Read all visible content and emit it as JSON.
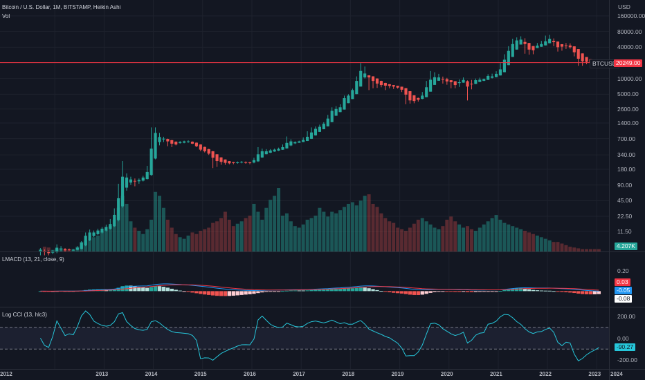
{
  "header": {
    "symbol_title": "Bitcoin / U.S. Dollar, 1M, BITSTAMP, Heikin Ashi",
    "vol_label": "Vol"
  },
  "panes": {
    "lmacd_label": "LMACD (13, 21, close, 9)",
    "cci_label": "Log CCI (13, hlc3)"
  },
  "price_axis": {
    "currency": "USD",
    "ticks": [
      "160000.00",
      "80000.00",
      "40000.00",
      "10000.00",
      "5000.00",
      "2600.00",
      "1400.00",
      "700.00",
      "340.00",
      "180.00",
      "90.00",
      "45.00",
      "22.50",
      "11.50"
    ],
    "tick_values": [
      160000,
      80000,
      40000,
      10000,
      5000,
      2600,
      1400,
      700,
      340,
      180,
      90,
      45,
      22.5,
      11.5
    ]
  },
  "badges": {
    "symbol": "BTCUSD",
    "last_price": "20249.00",
    "volume": "4.207K",
    "macd_hist": "0.03",
    "macd_line": "-0.05",
    "signal_line": "-0.08",
    "cci_value": "-90.27"
  },
  "macd_axis": {
    "ticks": [
      "0.20",
      "0.00"
    ]
  },
  "cci_axis": {
    "ticks": [
      "200.00",
      "0.00",
      "-200.00"
    ]
  },
  "time_axis": {
    "years": [
      "2012",
      "2013",
      "2014",
      "2015",
      "2016",
      "2017",
      "2018",
      "2019",
      "2020",
      "2021",
      "2022",
      "2023",
      "2024"
    ]
  },
  "colors": {
    "background": "#131722",
    "up": "#26a69a",
    "down": "#ef5350",
    "macd_line": "#2196f3",
    "signal_line": "#f23645",
    "cci_line": "#26c6da",
    "price_line": "#f23645",
    "text": "#d1d4dc"
  },
  "chart_data": [
    {
      "type": "candlestick",
      "title": "Bitcoin / U.S. Dollar, 1M, BITSTAMP, Heikin Ashi",
      "y_scale": "log",
      "ylim": [
        5,
        220000
      ],
      "x_start": "2011-09",
      "interval": "1M",
      "last_price": 20249,
      "candles": [
        {
          "o": 5.0,
          "c": 5.0,
          "h": 5.5,
          "l": 4.0
        },
        {
          "o": 4.8,
          "c": 4.6,
          "h": 5.2,
          "l": 4.0
        },
        {
          "o": 4.7,
          "c": 4.4,
          "h": 5.0,
          "l": 4.0
        },
        {
          "o": 4.5,
          "c": 4.8,
          "h": 5.0,
          "l": 4.2
        },
        {
          "o": 4.7,
          "c": 5.6,
          "h": 6.5,
          "l": 4.4
        },
        {
          "o": 5.2,
          "c": 5.4,
          "h": 6.0,
          "l": 4.8
        },
        {
          "o": 5.3,
          "c": 5.0,
          "h": 5.5,
          "l": 4.6
        },
        {
          "o": 5.2,
          "c": 5.1,
          "h": 5.4,
          "l": 4.9
        },
        {
          "o": 5.1,
          "c": 5.1,
          "h": 5.3,
          "l": 4.9
        },
        {
          "o": 5.1,
          "c": 5.6,
          "h": 6.0,
          "l": 5.0
        },
        {
          "o": 5.3,
          "c": 7.0,
          "h": 7.5,
          "l": 5.2
        },
        {
          "o": 6.2,
          "c": 9.5,
          "h": 11.0,
          "l": 6.0
        },
        {
          "o": 7.8,
          "c": 11.0,
          "h": 12.5,
          "l": 7.5
        },
        {
          "o": 9.4,
          "c": 11.0,
          "h": 12.0,
          "l": 9.0
        },
        {
          "o": 10.2,
          "c": 12.0,
          "h": 13.0,
          "l": 9.8
        },
        {
          "o": 11.0,
          "c": 13.0,
          "h": 14.0,
          "l": 10.5
        },
        {
          "o": 12.0,
          "c": 14.0,
          "h": 15.5,
          "l": 11.5
        },
        {
          "o": 13.0,
          "c": 16.0,
          "h": 20.0,
          "l": 12.5
        },
        {
          "o": 14.5,
          "c": 24.0,
          "h": 32.0,
          "l": 14.0
        },
        {
          "o": 19.0,
          "c": 50.0,
          "h": 95.0,
          "l": 18.0
        },
        {
          "o": 35.0,
          "c": 130.0,
          "h": 260.0,
          "l": 33.0
        },
        {
          "o": 80.0,
          "c": 125.0,
          "h": 150.0,
          "l": 70.0
        },
        {
          "o": 100.0,
          "c": 115.0,
          "h": 130.0,
          "l": 90.0
        },
        {
          "o": 108.0,
          "c": 105.0,
          "h": 120.0,
          "l": 85.0
        },
        {
          "o": 106.0,
          "c": 112.0,
          "h": 120.0,
          "l": 95.0
        },
        {
          "o": 109.0,
          "c": 125.0,
          "h": 135.0,
          "l": 105.0
        },
        {
          "o": 117.0,
          "c": 160.0,
          "h": 210.0,
          "l": 115.0
        },
        {
          "o": 140.0,
          "c": 450.0,
          "h": 1150.0,
          "l": 135.0
        },
        {
          "o": 290.0,
          "c": 900.0,
          "h": 1150.0,
          "l": 280.0
        },
        {
          "o": 600.0,
          "c": 750.0,
          "h": 900.0,
          "l": 520.0
        },
        {
          "o": 675.0,
          "c": 700.0,
          "h": 760.0,
          "l": 600.0
        },
        {
          "o": 690.0,
          "c": 620.0,
          "h": 700.0,
          "l": 500.0
        },
        {
          "o": 655.0,
          "c": 560.0,
          "h": 660.0,
          "l": 480.0
        },
        {
          "o": 610.0,
          "c": 540.0,
          "h": 620.0,
          "l": 520.0
        },
        {
          "o": 575.0,
          "c": 600.0,
          "h": 630.0,
          "l": 560.0
        },
        {
          "o": 585.0,
          "c": 620.0,
          "h": 640.0,
          "l": 570.0
        },
        {
          "o": 600.0,
          "c": 620.0,
          "h": 650.0,
          "l": 580.0
        },
        {
          "o": 610.0,
          "c": 560.0,
          "h": 620.0,
          "l": 550.0
        },
        {
          "o": 585.0,
          "c": 500.0,
          "h": 590.0,
          "l": 480.0
        },
        {
          "o": 540.0,
          "c": 430.0,
          "h": 545.0,
          "l": 400.0
        },
        {
          "o": 485.0,
          "c": 400.0,
          "h": 490.0,
          "l": 380.0
        },
        {
          "o": 440.0,
          "c": 360.0,
          "h": 445.0,
          "l": 340.0
        },
        {
          "o": 400.0,
          "c": 300.0,
          "h": 405.0,
          "l": 190.0
        },
        {
          "o": 350.0,
          "c": 260.0,
          "h": 352.0,
          "l": 200.0
        },
        {
          "o": 305.0,
          "c": 250.0,
          "h": 307.0,
          "l": 220.0
        },
        {
          "o": 278.0,
          "c": 240.0,
          "h": 279.0,
          "l": 220.0
        },
        {
          "o": 259.0,
          "c": 235.0,
          "h": 260.0,
          "l": 225.0
        },
        {
          "o": 247.0,
          "c": 238.0,
          "h": 250.0,
          "l": 225.0
        },
        {
          "o": 243.0,
          "c": 245.0,
          "h": 255.0,
          "l": 230.0
        },
        {
          "o": 244.0,
          "c": 250.0,
          "h": 260.0,
          "l": 235.0
        },
        {
          "o": 247.0,
          "c": 245.0,
          "h": 255.0,
          "l": 230.0
        },
        {
          "o": 246.0,
          "c": 240.0,
          "h": 250.0,
          "l": 225.0
        },
        {
          "o": 243.0,
          "c": 270.0,
          "h": 300.0,
          "l": 235.0
        },
        {
          "o": 256.0,
          "c": 350.0,
          "h": 480.0,
          "l": 250.0
        },
        {
          "o": 303.0,
          "c": 400.0,
          "h": 450.0,
          "l": 300.0
        },
        {
          "o": 351.0,
          "c": 400.0,
          "h": 440.0,
          "l": 350.0
        },
        {
          "o": 375.0,
          "c": 415.0,
          "h": 440.0,
          "l": 370.0
        },
        {
          "o": 395.0,
          "c": 430.0,
          "h": 450.0,
          "l": 390.0
        },
        {
          "o": 412.0,
          "c": 445.0,
          "h": 470.0,
          "l": 405.0
        },
        {
          "o": 428.0,
          "c": 480.0,
          "h": 540.0,
          "l": 425.0
        },
        {
          "o": 454.0,
          "c": 580.0,
          "h": 770.0,
          "l": 450.0
        },
        {
          "o": 517.0,
          "c": 620.0,
          "h": 680.0,
          "l": 500.0
        },
        {
          "o": 568.0,
          "c": 600.0,
          "h": 620.0,
          "l": 550.0
        },
        {
          "o": 584.0,
          "c": 620.0,
          "h": 640.0,
          "l": 580.0
        },
        {
          "o": 602.0,
          "c": 660.0,
          "h": 740.0,
          "l": 600.0
        },
        {
          "o": 631.0,
          "c": 760.0,
          "h": 970.0,
          "l": 630.0
        },
        {
          "o": 695.0,
          "c": 920.0,
          "h": 1150.0,
          "l": 690.0
        },
        {
          "o": 807.0,
          "c": 1080.0,
          "h": 1200.0,
          "l": 800.0
        },
        {
          "o": 943.0,
          "c": 1180.0,
          "h": 1300.0,
          "l": 940.0
        },
        {
          "o": 1061.0,
          "c": 1350.0,
          "h": 1450.0,
          "l": 1060.0
        },
        {
          "o": 1205.0,
          "c": 1700.0,
          "h": 2000.0,
          "l": 1200.0
        },
        {
          "o": 1452.0,
          "c": 2400.0,
          "h": 2800.0,
          "l": 1450.0
        },
        {
          "o": 1926.0,
          "c": 2600.0,
          "h": 2950.0,
          "l": 1920.0
        },
        {
          "o": 2263.0,
          "c": 2800.0,
          "h": 3200.0,
          "l": 2260.0
        },
        {
          "o": 2531.0,
          "c": 4200.0,
          "h": 4700.0,
          "l": 2530.0
        },
        {
          "o": 3365.0,
          "c": 4700.0,
          "h": 5000.0,
          "l": 3360.0
        },
        {
          "o": 4032.0,
          "c": 6000.0,
          "h": 6400.0,
          "l": 4030.0
        },
        {
          "o": 5016.0,
          "c": 9000.0,
          "h": 11000.0,
          "l": 5010.0
        },
        {
          "o": 7008.0,
          "c": 14000.0,
          "h": 19800.0,
          "l": 7000.0
        },
        {
          "o": 10504.0,
          "c": 12500.0,
          "h": 17000.0,
          "l": 10000.0
        },
        {
          "o": 11502.0,
          "c": 10500.0,
          "h": 11600.0,
          "l": 6000.0
        },
        {
          "o": 11001.0,
          "c": 9000.0,
          "h": 11100.0,
          "l": 6500.0
        },
        {
          "o": 10001.0,
          "c": 8000.0,
          "h": 10100.0,
          "l": 6600.0
        },
        {
          "o": 9001.0,
          "c": 7500.0,
          "h": 9100.0,
          "l": 6800.0
        },
        {
          "o": 8251.0,
          "c": 7300.0,
          "h": 8300.0,
          "l": 6000.0
        },
        {
          "o": 7776.0,
          "c": 7200.0,
          "h": 7800.0,
          "l": 6500.0
        },
        {
          "o": 7488.0,
          "c": 7000.0,
          "h": 7500.0,
          "l": 6300.0
        },
        {
          "o": 7244.0,
          "c": 6700.0,
          "h": 7250.0,
          "l": 6400.0
        },
        {
          "o": 6972.0,
          "c": 6100.0,
          "h": 6980.0,
          "l": 5500.0
        },
        {
          "o": 6536.0,
          "c": 4900.0,
          "h": 6540.0,
          "l": 3200.0
        },
        {
          "o": 5718.0,
          "c": 3800.0,
          "h": 5720.0,
          "l": 3300.0
        },
        {
          "o": 4759.0,
          "c": 3700.0,
          "h": 4760.0,
          "l": 3350.0
        },
        {
          "o": 4229.0,
          "c": 3900.0,
          "h": 4300.0,
          "l": 3600.0
        },
        {
          "o": 4065.0,
          "c": 4700.0,
          "h": 5500.0,
          "l": 4000.0
        },
        {
          "o": 4382.0,
          "c": 6800.0,
          "h": 9000.0,
          "l": 4380.0
        },
        {
          "o": 5591.0,
          "c": 9500.0,
          "h": 13900.0,
          "l": 5590.0
        },
        {
          "o": 7545.0,
          "c": 10600.0,
          "h": 13200.0,
          "l": 7540.0
        },
        {
          "o": 9072.0,
          "c": 10500.0,
          "h": 12300.0,
          "l": 9070.0
        },
        {
          "o": 9786.0,
          "c": 9700.0,
          "h": 10900.0,
          "l": 8000.0
        },
        {
          "o": 9743.0,
          "c": 8800.0,
          "h": 10300.0,
          "l": 7600.0
        },
        {
          "o": 9271.0,
          "c": 8500.0,
          "h": 9300.0,
          "l": 6500.0
        },
        {
          "o": 8886.0,
          "c": 7500.0,
          "h": 8890.0,
          "l": 6500.0
        },
        {
          "o": 8193.0,
          "c": 8500.0,
          "h": 9600.0,
          "l": 6900.0
        },
        {
          "o": 8346.0,
          "c": 9400.0,
          "h": 10500.0,
          "l": 8300.0
        },
        {
          "o": 8873.0,
          "c": 7000.0,
          "h": 9200.0,
          "l": 3800.0
        },
        {
          "o": 7937.0,
          "c": 7800.0,
          "h": 9400.0,
          "l": 6200.0
        },
        {
          "o": 7868.0,
          "c": 9300.0,
          "h": 10000.0,
          "l": 7800.0
        },
        {
          "o": 8584.0,
          "c": 9500.0,
          "h": 10400.0,
          "l": 8600.0
        },
        {
          "o": 9042.0,
          "c": 9800.0,
          "h": 10000.0,
          "l": 8900.0
        },
        {
          "o": 9421.0,
          "c": 11200.0,
          "h": 12100.0,
          "l": 9400.0
        },
        {
          "o": 10310.0,
          "c": 11000.0,
          "h": 12400.0,
          "l": 10000.0
        },
        {
          "o": 10655.0,
          "c": 12300.0,
          "h": 13800.0,
          "l": 10600.0
        },
        {
          "o": 11477.0,
          "c": 15000.0,
          "h": 19800.0,
          "l": 11400.0
        },
        {
          "o": 13238.0,
          "c": 23000.0,
          "h": 29300.0,
          "l": 13200.0
        },
        {
          "o": 18119.0,
          "c": 34000.0,
          "h": 41900.0,
          "l": 18100.0
        },
        {
          "o": 26060.0,
          "c": 46000.0,
          "h": 58300.0,
          "l": 26000.0
        },
        {
          "o": 36030.0,
          "c": 54000.0,
          "h": 61700.0,
          "l": 36000.0
        },
        {
          "o": 45015.0,
          "c": 56000.0,
          "h": 64800.0,
          "l": 45000.0
        },
        {
          "o": 50508.0,
          "c": 46000.0,
          "h": 59500.0,
          "l": 30000.0
        },
        {
          "o": 48254.0,
          "c": 36000.0,
          "h": 48300.0,
          "l": 28800.0
        },
        {
          "o": 42127.0,
          "c": 35000.0,
          "h": 42200.0,
          "l": 29300.0
        },
        {
          "o": 38564.0,
          "c": 43000.0,
          "h": 48100.0,
          "l": 38500.0
        },
        {
          "o": 40782.0,
          "c": 46000.0,
          "h": 52900.0,
          "l": 40700.0
        },
        {
          "o": 43391.0,
          "c": 52000.0,
          "h": 66900.0,
          "l": 43300.0
        },
        {
          "o": 47696.0,
          "c": 58000.0,
          "h": 69000.0,
          "l": 47600.0
        },
        {
          "o": 52848.0,
          "c": 50000.0,
          "h": 59000.0,
          "l": 42000.0
        },
        {
          "o": 51424.0,
          "c": 40000.0,
          "h": 51500.0,
          "l": 33000.0
        },
        {
          "o": 45712.0,
          "c": 41000.0,
          "h": 45800.0,
          "l": 34300.0
        },
        {
          "o": 43356.0,
          "c": 43000.0,
          "h": 48200.0,
          "l": 37000.0
        },
        {
          "o": 43178.0,
          "c": 40000.0,
          "h": 47500.0,
          "l": 37500.0
        },
        {
          "o": 41589.0,
          "c": 32000.0,
          "h": 41600.0,
          "l": 26700.0
        },
        {
          "o": 36794.0,
          "c": 24000.0,
          "h": 36800.0,
          "l": 17600.0
        },
        {
          "o": 30397.0,
          "c": 21500.0,
          "h": 30400.0,
          "l": 17600.0
        },
        {
          "o": 25948.0,
          "c": 21000.0,
          "h": 25950.0,
          "l": 18900.0
        },
        {
          "o": 23474.0,
          "c": 20000.0,
          "h": 23500.0,
          "l": 18200.0
        },
        {
          "o": 21737.0,
          "c": 19700.0,
          "h": 21740.0,
          "l": 18200.0
        },
        {
          "o": 20718.0,
          "c": 20249.0,
          "h": 21500.0,
          "l": 19600.0
        }
      ]
    },
    {
      "type": "bar",
      "title": "Vol",
      "last_value": "4.207K",
      "values": [
        3,
        6,
        5,
        2,
        3,
        4,
        2,
        2,
        3,
        6,
        12,
        14,
        15,
        18,
        20,
        25,
        27,
        32,
        40,
        55,
        70,
        60,
        38,
        30,
        26,
        22,
        28,
        40,
        75,
        70,
        55,
        40,
        30,
        22,
        18,
        16,
        20,
        24,
        22,
        26,
        28,
        30,
        36,
        38,
        42,
        50,
        40,
        32,
        35,
        38,
        42,
        45,
        60,
        50,
        40,
        55,
        65,
        70,
        80,
        45,
        48,
        38,
        32,
        30,
        34,
        40,
        42,
        45,
        55,
        50,
        44,
        50,
        48,
        52,
        56,
        60,
        62,
        58,
        64,
        70,
        72,
        60,
        56,
        48,
        42,
        38,
        36,
        30,
        28,
        26,
        30,
        35,
        40,
        42,
        38,
        34,
        30,
        28,
        32,
        40,
        44,
        38,
        34,
        30,
        32,
        28,
        26,
        30,
        34,
        38,
        42,
        46,
        40,
        36,
        34,
        32,
        30,
        28,
        26,
        24,
        22,
        20,
        18,
        16,
        14,
        12,
        12,
        10,
        8,
        6,
        5,
        4,
        3,
        3,
        3,
        3,
        3
      ]
    },
    {
      "type": "line",
      "title": "LMACD (13, 21, close, 9)",
      "series": [
        {
          "name": "MACD"
        },
        {
          "name": "Signal"
        },
        {
          "name": "Histogram"
        }
      ],
      "ylim": [
        -0.12,
        0.35
      ],
      "last_values": {
        "histogram": 0.03,
        "macd": -0.05,
        "signal": -0.08
      }
    },
    {
      "type": "line",
      "title": "Log CCI (13, hlc3)",
      "ylim": [
        -250,
        250
      ],
      "levels": [
        100,
        -100
      ],
      "last_value": -90.27
    }
  ]
}
